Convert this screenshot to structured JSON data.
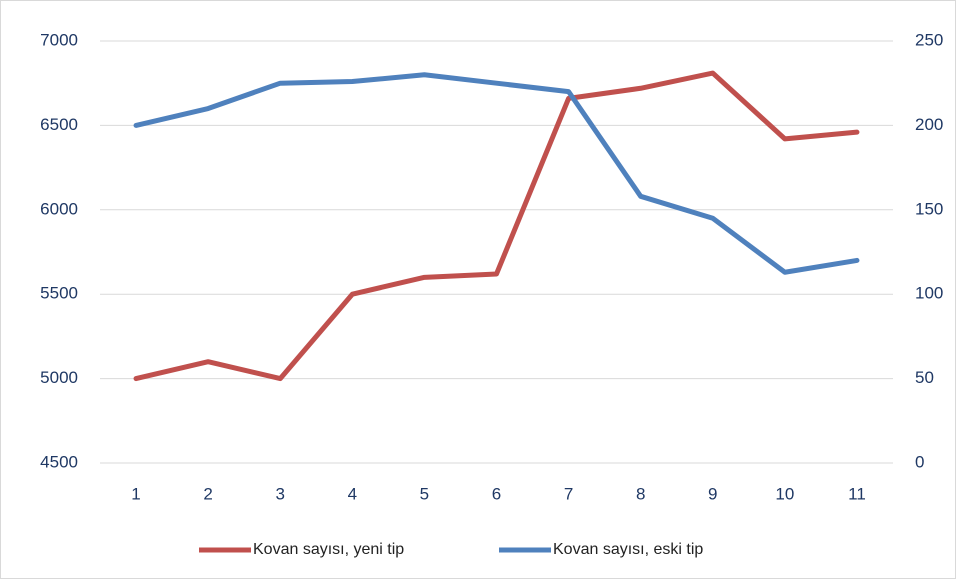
{
  "chart_data": {
    "type": "line",
    "categories": [
      "1",
      "2",
      "3",
      "4",
      "5",
      "6",
      "7",
      "8",
      "9",
      "10",
      "11"
    ],
    "series": [
      {
        "name": "Kovan sayısı, yeni tip",
        "color": "#c0504d",
        "values": [
          5000,
          5100,
          5000,
          5500,
          5600,
          5620,
          6660,
          6720,
          6810,
          6420,
          6460
        ]
      },
      {
        "name": "Kovan sayısı, eski tip",
        "color": "#4f81bd",
        "axis": "y2",
        "values": [
          200,
          210,
          225,
          226,
          230,
          225,
          220,
          158,
          145,
          113,
          120
        ]
      }
    ],
    "ylim": [
      4500,
      7000
    ],
    "yticks": [
      4500,
      5000,
      5500,
      6000,
      6500,
      7000
    ],
    "y2lim": [
      0,
      250
    ],
    "y2ticks": [
      0,
      50,
      100,
      150,
      200,
      250
    ],
    "grid": true,
    "legend": "bottom"
  }
}
